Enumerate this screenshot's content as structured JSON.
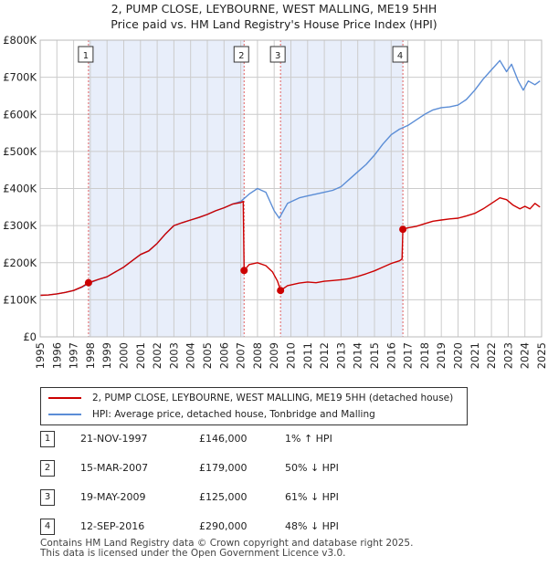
{
  "title_line1": "2, PUMP CLOSE, LEYBOURNE, WEST MALLING, ME19 5HH",
  "title_line2": "Price paid vs. HM Land Registry's House Price Index (HPI)",
  "chart_data": {
    "type": "line",
    "xlim": [
      1995,
      2025
    ],
    "ylim": [
      0,
      800000
    ],
    "yticks": [
      0,
      100000,
      200000,
      300000,
      400000,
      500000,
      600000,
      700000,
      800000
    ],
    "ytick_labels": [
      "£0",
      "£100K",
      "£200K",
      "£300K",
      "£400K",
      "£500K",
      "£600K",
      "£700K",
      "£800K"
    ],
    "xticks": [
      1995,
      1996,
      1997,
      1998,
      1999,
      2000,
      2001,
      2002,
      2003,
      2004,
      2005,
      2006,
      2007,
      2008,
      2009,
      2010,
      2011,
      2012,
      2013,
      2014,
      2015,
      2016,
      2017,
      2018,
      2019,
      2020,
      2021,
      2022,
      2023,
      2024,
      2025
    ],
    "xtick_labels": [
      "1995",
      "1996",
      "1997",
      "1998",
      "1999",
      "2000",
      "2001",
      "2002",
      "2003",
      "2004",
      "2005",
      "2006",
      "2007",
      "2008",
      "2009",
      "2010",
      "2011",
      "2012",
      "2013",
      "2014",
      "2015",
      "2016",
      "2017",
      "2018",
      "2019",
      "2020",
      "2021",
      "2022",
      "2023",
      "2024",
      "2025"
    ],
    "grid": true,
    "shaded_periods": [
      [
        1997.89,
        2007.2
      ],
      [
        2009.38,
        2016.7
      ]
    ],
    "series": [
      {
        "name": "2, PUMP CLOSE, LEYBOURNE, WEST MALLING, ME19 5HH (detached house)",
        "color": "#cc0000",
        "x": [
          1995.0,
          1995.5,
          1996.0,
          1996.5,
          1997.0,
          1997.5,
          1997.89,
          1998.5,
          1999.0,
          1999.5,
          2000.0,
          2000.5,
          2001.0,
          2001.5,
          2002.0,
          2002.5,
          2003.0,
          2003.5,
          2004.0,
          2004.5,
          2005.0,
          2005.5,
          2006.0,
          2006.5,
          2007.0,
          2007.15,
          2007.2,
          2007.5,
          2008.0,
          2008.5,
          2008.9,
          2009.2,
          2009.38,
          2009.8,
          2010.5,
          2011.0,
          2011.5,
          2012.0,
          2012.5,
          2013.0,
          2013.5,
          2014.0,
          2014.5,
          2015.0,
          2015.5,
          2016.0,
          2016.5,
          2016.65,
          2016.7,
          2017.0,
          2017.5,
          2018.0,
          2018.5,
          2019.0,
          2019.5,
          2020.0,
          2020.5,
          2021.0,
          2021.5,
          2022.0,
          2022.5,
          2022.9,
          2023.3,
          2023.7,
          2024.0,
          2024.3,
          2024.6,
          2024.9
        ],
        "values": [
          112000,
          113000,
          116000,
          120000,
          125000,
          135000,
          146000,
          155000,
          162000,
          175000,
          188000,
          205000,
          222000,
          232000,
          252000,
          278000,
          300000,
          308000,
          315000,
          322000,
          330000,
          340000,
          348000,
          358000,
          362000,
          365000,
          179000,
          195000,
          200000,
          192000,
          175000,
          150000,
          125000,
          138000,
          145000,
          148000,
          146000,
          150000,
          152000,
          154000,
          157000,
          163000,
          170000,
          178000,
          188000,
          198000,
          205000,
          210000,
          290000,
          294000,
          298000,
          305000,
          312000,
          315000,
          318000,
          320000,
          326000,
          333000,
          345000,
          360000,
          375000,
          370000,
          355000,
          345000,
          352000,
          345000,
          360000,
          350000
        ]
      },
      {
        "name": "HPI: Average price, detached house, Tonbridge and Malling",
        "color": "#5b8dd6",
        "x": [
          1995.0,
          1995.5,
          1996.0,
          1996.5,
          1997.0,
          1997.5,
          1997.89,
          1998.5,
          1999.0,
          1999.5,
          2000.0,
          2000.5,
          2001.0,
          2001.5,
          2002.0,
          2002.5,
          2003.0,
          2003.5,
          2004.0,
          2004.5,
          2005.0,
          2005.5,
          2006.0,
          2006.5,
          2007.0,
          2007.5,
          2008.0,
          2008.5,
          2009.0,
          2009.3,
          2009.8,
          2010.5,
          2011.0,
          2011.5,
          2012.0,
          2012.5,
          2013.0,
          2013.5,
          2014.0,
          2014.5,
          2015.0,
          2015.5,
          2016.0,
          2016.5,
          2017.0,
          2017.5,
          2018.0,
          2018.5,
          2019.0,
          2019.5,
          2020.0,
          2020.5,
          2021.0,
          2021.5,
          2022.0,
          2022.5,
          2022.9,
          2023.2,
          2023.6,
          2023.9,
          2024.2,
          2024.6,
          2024.9
        ],
        "values": [
          112000,
          113000,
          116000,
          120000,
          125000,
          134000,
          144000,
          155000,
          162000,
          175000,
          188000,
          205000,
          222000,
          232000,
          252000,
          278000,
          300000,
          308000,
          315000,
          322000,
          330000,
          340000,
          348000,
          358000,
          365000,
          385000,
          400000,
          390000,
          340000,
          320000,
          360000,
          375000,
          380000,
          385000,
          390000,
          395000,
          405000,
          425000,
          445000,
          465000,
          490000,
          520000,
          545000,
          560000,
          570000,
          585000,
          600000,
          612000,
          618000,
          620000,
          625000,
          640000,
          665000,
          695000,
          720000,
          745000,
          715000,
          735000,
          690000,
          665000,
          690000,
          680000,
          690000
        ]
      }
    ],
    "sales": [
      {
        "label": "1",
        "x": 1997.89,
        "value": 146000
      },
      {
        "label": "2",
        "x": 2007.2,
        "value": 179000
      },
      {
        "label": "3",
        "x": 2009.38,
        "value": 125000
      },
      {
        "label": "4",
        "x": 2016.7,
        "value": 290000
      }
    ]
  },
  "legend": {
    "property_label": "2, PUMP CLOSE, LEYBOURNE, WEST MALLING, ME19 5HH (detached house)",
    "hpi_label": "HPI: Average price, detached house, Tonbridge and Malling"
  },
  "sales_table": [
    {
      "num": "1",
      "date": "21-NOV-1997",
      "price": "£146,000",
      "hpi": "1% ↑ HPI"
    },
    {
      "num": "2",
      "date": "15-MAR-2007",
      "price": "£179,000",
      "hpi": "50% ↓ HPI"
    },
    {
      "num": "3",
      "date": "19-MAY-2009",
      "price": "£125,000",
      "hpi": "61% ↓ HPI"
    },
    {
      "num": "4",
      "date": "12-SEP-2016",
      "price": "£290,000",
      "hpi": "48% ↓ HPI"
    }
  ],
  "footer": {
    "line1": "Contains HM Land Registry data © Crown copyright and database right 2025.",
    "line2": "This data is licensed under the Open Government Licence v3.0."
  },
  "colors": {
    "property_line": "#cc0000",
    "hpi_line": "#5b8dd6",
    "shading": "#e8eefa",
    "grid": "#cccccc",
    "marker_vline": "#e06060"
  }
}
